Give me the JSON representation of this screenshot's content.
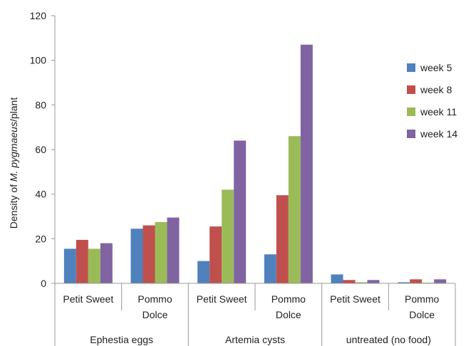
{
  "chart_data": {
    "type": "bar",
    "ylabel_prefix": "Density of ",
    "ylabel_italic": "M. pygmaeus",
    "ylabel_suffix": "/plant",
    "ylim": [
      0,
      120
    ],
    "yticks": [
      "0",
      "20",
      "40",
      "60",
      "80",
      "100",
      "120"
    ],
    "ytick_values": [
      0,
      20,
      40,
      60,
      80,
      100,
      120
    ],
    "categories": [
      [
        "Petit Sweet"
      ],
      [
        "Pommo",
        "Dolce"
      ],
      [
        "Petit Sweet"
      ],
      [
        "Pommo",
        "Dolce"
      ],
      [
        "Petit Sweet"
      ],
      [
        "Pommo",
        "Dolce"
      ]
    ],
    "groups": [
      "Ephestia eggs",
      "Artemia cysts",
      "untreated (no food)"
    ],
    "series": [
      {
        "name": "week 5",
        "color": "#4F81BD",
        "values": [
          15.5,
          24.5,
          10,
          13,
          4,
          0.5
        ]
      },
      {
        "name": "week 8",
        "color": "#C0504D",
        "values": [
          19.5,
          26,
          25.5,
          39.5,
          1.5,
          1.8
        ]
      },
      {
        "name": "week 11",
        "color": "#9BBB59",
        "values": [
          15.5,
          27.5,
          42,
          66,
          0.5,
          0.3
        ]
      },
      {
        "name": "week 14",
        "color": "#8064A2",
        "values": [
          18,
          29.5,
          64,
          107,
          1.5,
          1.8
        ]
      }
    ],
    "legend_position": "right",
    "grid": false
  }
}
